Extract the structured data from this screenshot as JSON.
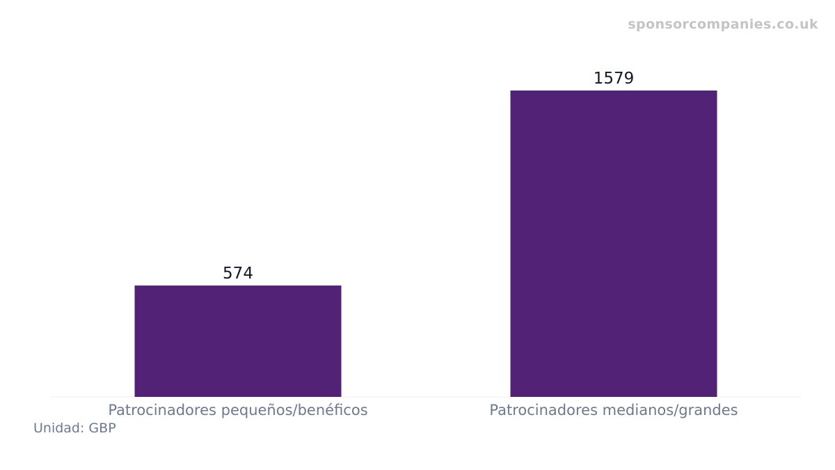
{
  "watermark": "sponsorcompanies.co.uk",
  "unit_label": "Unidad: GBP",
  "colors": {
    "bar": "#522276",
    "tick_text": "#6b7a8f",
    "value_text": "#111827",
    "baseline": "#f0f0f0"
  },
  "chart_data": {
    "type": "bar",
    "categories": [
      "Patrocinadores pequeños/benéficos",
      "Patrocinadores medianos/grandes"
    ],
    "values": [
      574,
      1579
    ],
    "data_labels": [
      "574",
      "1579"
    ],
    "ylim": [
      0,
      1579
    ],
    "grid": false,
    "legend": "none"
  }
}
